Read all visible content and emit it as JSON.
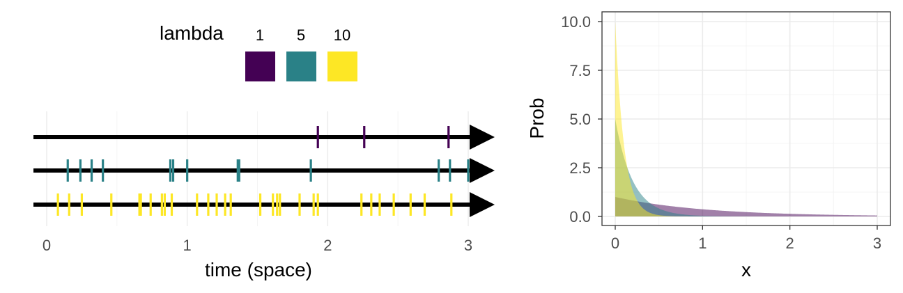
{
  "colors": {
    "lambda_1": "#440154",
    "lambda_5": "#2A8187",
    "lambda_10": "#FDE725",
    "axis_arrow": "#000000",
    "grid": "#EBEBEB",
    "tick_text": "#4D4D4D",
    "panel_border": "#333333"
  },
  "chart_data": [
    {
      "type": "scatter",
      "subtype": "event-timeline",
      "xlabel": "time (space)",
      "ylabel": "",
      "xlim": [
        0,
        3.1
      ],
      "x_ticks": [
        "0",
        "1",
        "2",
        "3"
      ],
      "grid": true,
      "legend": {
        "title": "lambda",
        "placement": "top",
        "entries": [
          {
            "label": "1",
            "color_key": "lambda_1"
          },
          {
            "label": "5",
            "color_key": "lambda_5"
          },
          {
            "label": "10",
            "color_key": "lambda_10"
          }
        ]
      },
      "series": [
        {
          "name": "1",
          "color_key": "lambda_1",
          "values": [
            1.93,
            2.26,
            2.86
          ]
        },
        {
          "name": "5",
          "color_key": "lambda_5",
          "values": [
            0.15,
            0.24,
            0.32,
            0.4,
            0.88,
            0.9,
            1.0,
            1.36,
            1.37,
            1.88,
            2.79,
            2.87,
            3.0
          ]
        },
        {
          "name": "10",
          "color_key": "lambda_10",
          "values": [
            0.08,
            0.16,
            0.25,
            0.46,
            0.66,
            0.67,
            0.74,
            0.82,
            0.84,
            0.89,
            1.07,
            1.15,
            1.21,
            1.27,
            1.31,
            1.52,
            1.61,
            1.64,
            1.66,
            1.8,
            1.9,
            1.93,
            2.24,
            2.31,
            2.37,
            2.47,
            2.59,
            2.69,
            2.88
          ]
        }
      ]
    },
    {
      "type": "area",
      "xlabel": "x",
      "ylabel": "Prob",
      "xlim": [
        0,
        3
      ],
      "ylim": [
        0,
        10
      ],
      "x_ticks": [
        "0",
        "1",
        "2",
        "3"
      ],
      "y_ticks": [
        "0.0",
        "2.5",
        "5.0",
        "7.5",
        "10.0"
      ],
      "grid": true,
      "series": [
        {
          "name": "1",
          "color_key": "lambda_1",
          "rate": 1,
          "x_range": [
            0,
            3
          ],
          "opacity": 0.5
        },
        {
          "name": "5",
          "color_key": "lambda_5",
          "rate": 5,
          "x_range": [
            0,
            3
          ],
          "opacity": 0.5
        },
        {
          "name": "10",
          "color_key": "lambda_10",
          "rate": 10,
          "x_range": [
            0,
            3
          ],
          "opacity": 0.5
        }
      ]
    }
  ]
}
